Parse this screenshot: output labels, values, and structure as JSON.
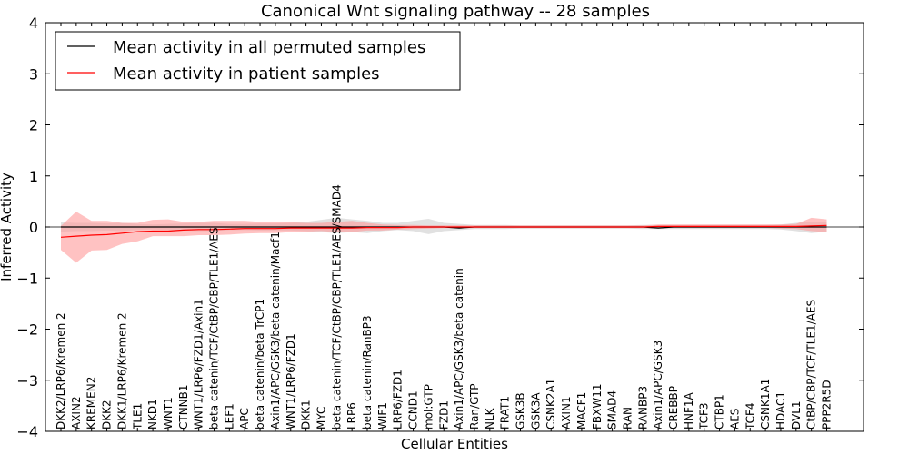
{
  "chart_data": {
    "type": "line",
    "title": "Canonical Wnt signaling pathway -- 28 samples",
    "xlabel": "Cellular Entities",
    "ylabel": "Inferred Activity",
    "ylim": [
      -4,
      4
    ],
    "yticks": [
      -4,
      -3,
      -2,
      -1,
      0,
      1,
      2,
      3,
      4
    ],
    "ytick_labels": [
      "−4",
      "−3",
      "−2",
      "−1",
      "0",
      "1",
      "2",
      "3",
      "4"
    ],
    "legend_position": "top-left",
    "colors": {
      "permuted": "#000000",
      "patient": "#ff0000",
      "patient_band": "#ff9999",
      "permuted_band": "#c8c8c8"
    },
    "categories": [
      "DKK2/LRP6/Kremen 2",
      "AXIN2",
      "KREMEN2",
      "DKK2",
      "DKK1/LRP6/Kremen 2",
      "TLE1",
      "NKD1",
      "WNT1",
      "CTNNB1",
      "WNT1/LRP6/FZD1/Axin1",
      "beta catenin/TCF/CtBP/CBP/TLE1/AES",
      "LEF1",
      "APC",
      "beta catenin/beta TrCP1",
      "Axin1/APC/GSK3/beta catenin/Macf1",
      "WNT1/LRP6/FZD1",
      "DKK1",
      "MYC",
      "beta catenin/TCF/CtBP/CBP/TLE1/AES/SMAD4",
      "LRP6",
      "beta catenin/RanBP3",
      "WIF1",
      "LRP6/FZD1",
      "CCND1",
      "mol:GTP",
      "FZD1",
      "Axin1/APC/GSK3/beta catenin",
      "Ran/GTP",
      "NLK",
      "FRAT1",
      "GSK3B",
      "GSK3A",
      "CSNK2A1",
      "AXIN1",
      "MACF1",
      "FBXW11",
      "SMAD4",
      "RAN",
      "RANBP3",
      "Axin1/APC/GSK3",
      "CREBBP",
      "HNF1A",
      "TCF3",
      "CTBP1",
      "AES",
      "TCF4",
      "CSNK1A1",
      "HDAC1",
      "DVL1",
      "CtBP/CBP/TCF/TLE1/AES",
      "PPP2R5D"
    ],
    "series": [
      {
        "name": "Mean activity in all permuted samples",
        "values": [
          0,
          0,
          0,
          0,
          0,
          0,
          0,
          0,
          0,
          0,
          0,
          0,
          0,
          0,
          0,
          0,
          0,
          0,
          0,
          0,
          0,
          0,
          0,
          0,
          0,
          0,
          -0.02,
          0,
          0,
          0,
          0,
          0,
          0,
          0,
          0,
          0,
          0,
          0,
          0,
          -0.02,
          0,
          0,
          0,
          0,
          0,
          0,
          0,
          0,
          0,
          0,
          0
        ],
        "lower": [
          -0.09,
          -0.08,
          -0.08,
          -0.07,
          -0.08,
          -0.06,
          -0.05,
          -0.06,
          -0.07,
          -0.08,
          -0.08,
          -0.06,
          -0.06,
          -0.07,
          -0.07,
          -0.07,
          -0.08,
          -0.1,
          -0.12,
          -0.1,
          -0.12,
          -0.08,
          -0.06,
          -0.08,
          -0.14,
          -0.08,
          -0.06,
          -0.04,
          -0.04,
          -0.04,
          -0.03,
          -0.03,
          -0.03,
          -0.03,
          -0.03,
          -0.03,
          -0.03,
          -0.03,
          -0.04,
          -0.04,
          -0.04,
          -0.04,
          -0.04,
          -0.04,
          -0.04,
          -0.04,
          -0.04,
          -0.05,
          -0.08,
          -0.12,
          -0.09
        ],
        "upper": [
          0.09,
          0.08,
          0.08,
          0.07,
          0.08,
          0.06,
          0.05,
          0.06,
          0.07,
          0.08,
          0.08,
          0.06,
          0.06,
          0.07,
          0.07,
          0.08,
          0.1,
          0.14,
          0.18,
          0.15,
          0.12,
          0.08,
          0.08,
          0.12,
          0.16,
          0.08,
          0.06,
          0.04,
          0.04,
          0.04,
          0.03,
          0.03,
          0.03,
          0.03,
          0.03,
          0.03,
          0.03,
          0.03,
          0.04,
          0.04,
          0.04,
          0.04,
          0.04,
          0.04,
          0.04,
          0.04,
          0.04,
          0.05,
          0.08,
          0.1,
          0.09
        ]
      },
      {
        "name": "Mean activity in patient samples",
        "values": [
          -0.2,
          -0.18,
          -0.16,
          -0.15,
          -0.12,
          -0.09,
          -0.08,
          -0.08,
          -0.06,
          -0.05,
          -0.05,
          -0.04,
          -0.03,
          -0.03,
          -0.03,
          -0.02,
          -0.02,
          -0.02,
          -0.02,
          -0.02,
          -0.01,
          -0.01,
          -0.01,
          0,
          0,
          0,
          0,
          0,
          0,
          0,
          0,
          0,
          0,
          0,
          0,
          0,
          0,
          0,
          0,
          0.01,
          0.01,
          0.01,
          0.01,
          0.01,
          0.01,
          0.01,
          0.01,
          0.01,
          0.01,
          0.02,
          0.03
        ],
        "lower": [
          -0.45,
          -0.7,
          -0.46,
          -0.45,
          -0.33,
          -0.28,
          -0.18,
          -0.18,
          -0.18,
          -0.16,
          -0.16,
          -0.15,
          -0.13,
          -0.12,
          -0.12,
          -0.1,
          -0.09,
          -0.08,
          -0.1,
          -0.1,
          -0.07,
          -0.07,
          -0.05,
          -0.04,
          -0.03,
          -0.02,
          -0.02,
          -0.02,
          -0.02,
          -0.02,
          -0.02,
          -0.02,
          -0.02,
          -0.02,
          -0.02,
          -0.02,
          -0.02,
          -0.02,
          -0.02,
          -0.02,
          -0.02,
          -0.02,
          -0.02,
          -0.02,
          -0.02,
          -0.02,
          -0.02,
          -0.03,
          -0.04,
          -0.08,
          -0.1
        ],
        "upper": [
          0.02,
          0.3,
          0.12,
          0.12,
          0.08,
          0.08,
          0.14,
          0.15,
          0.1,
          0.1,
          0.12,
          0.12,
          0.12,
          0.1,
          0.1,
          0.09,
          0.08,
          0.08,
          0.1,
          0.12,
          0.08,
          0.05,
          0.04,
          0.04,
          0.03,
          0.03,
          0.03,
          0.03,
          0.03,
          0.03,
          0.03,
          0.03,
          0.03,
          0.03,
          0.03,
          0.03,
          0.03,
          0.03,
          0.03,
          0.05,
          0.05,
          0.05,
          0.05,
          0.05,
          0.05,
          0.05,
          0.05,
          0.05,
          0.06,
          0.18,
          0.15
        ]
      }
    ]
  }
}
